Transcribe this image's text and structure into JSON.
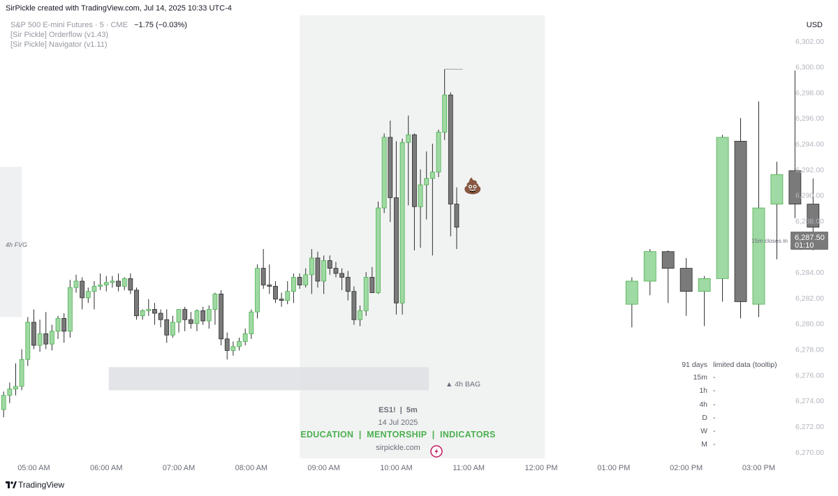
{
  "header": {
    "created_by": "SirPickle created with TradingView.com, Jul 14, 2025 10:33 UTC-4",
    "currency": "USD"
  },
  "legend": {
    "symbol": "S&P 500 E-mini Futures · 5 · CME",
    "change": "−1.75 (−0.03%)",
    "indicator_1": "[Sir Pickle] Orderflow (v1.43)",
    "indicator_2": "[Sir Pickle] Navigator (v1.11)"
  },
  "annotations": {
    "fvg_label": "4h FVG",
    "bag_label": "▲ 4h BAG",
    "emoji": "💩",
    "watermark_symbol": "ES1!  |  5m",
    "watermark_date": "14 Jul 2025",
    "watermark_banner": "EDUCATION  |  MENTORSHIP  |  INDICATORS",
    "watermark_site": "sirpickle.com",
    "closes_in_label": "15m closes in"
  },
  "price_tag": {
    "price": "6,287.50",
    "timer": "01:10"
  },
  "tooltip_table": {
    "header_days": "91 days",
    "header_note": "limited data (tooltip)",
    "rows": [
      {
        "tf": "15m",
        "val": "-"
      },
      {
        "tf": "1h",
        "val": "-"
      },
      {
        "tf": "4h",
        "val": "-"
      },
      {
        "tf": "D",
        "val": "-"
      },
      {
        "tf": "W",
        "val": "-"
      },
      {
        "tf": "M",
        "val": "-"
      }
    ]
  },
  "footer": {
    "brand": "TradingView"
  },
  "colors": {
    "up": "#9fd9a3",
    "up_border": "#4caf50",
    "down": "#7a7a7a",
    "down_border": "#2b2b2b",
    "accent_green": "#4caf50",
    "price_tag_bg": "#7a7a7a"
  },
  "chart_data": {
    "type": "candlestick",
    "y_axis": {
      "ticks": [
        6270,
        6272,
        6274,
        6276,
        6278,
        6280,
        6282,
        6284,
        6286,
        6288,
        6290,
        6292,
        6294,
        6296,
        6298,
        6300,
        6302
      ],
      "tick_labels": [
        "6,270.00",
        "6,272.00",
        "6,274.00",
        "6,276.00",
        "6,278.00",
        "6,280.00",
        "6,282.00",
        "6,284.00",
        "6,286.00",
        "6,288.00",
        "6,290.00",
        "6,292.00",
        "6,294.00",
        "6,296.00",
        "6,298.00",
        "6,300.00",
        "6,302.00"
      ],
      "range": [
        6269.5,
        6304
      ]
    },
    "x_axis": {
      "tick_labels": [
        "05:00 AM",
        "06:00 AM",
        "07:00 AM",
        "08:00 AM",
        "09:00 AM",
        "10:00 AM",
        "11:00 AM",
        "12:00 PM",
        "01:00 PM",
        "02:00 PM",
        "03:00 PM"
      ],
      "tick_minutes": [
        300,
        360,
        420,
        480,
        540,
        600,
        660,
        720,
        780,
        840,
        900
      ],
      "range_minutes": [
        272,
        924
      ]
    },
    "last_price": 6287.5,
    "zones": [
      {
        "label": "4h FVG",
        "x_start_min": 272,
        "x_end_min": 290,
        "y_low": 6280.5,
        "y_high": 6292.2
      },
      {
        "label": "4h BAG",
        "x_start_min": 362,
        "x_end_min": 627,
        "y_low": 6274.8,
        "y_high": 6276.6
      }
    ],
    "session_highlight": {
      "x_start_min": 520,
      "x_end_min": 723
    },
    "candles_5m": [
      {
        "t": 275,
        "o": 6273.3,
        "h": 6274.7,
        "l": 6272.7,
        "c": 6274.4
      },
      {
        "t": 280,
        "o": 6274.4,
        "h": 6275.4,
        "l": 6273.8,
        "c": 6274.9
      },
      {
        "t": 285,
        "o": 6274.9,
        "h": 6276.9,
        "l": 6274.4,
        "c": 6275.1
      },
      {
        "t": 290,
        "o": 6275.1,
        "h": 6278.0,
        "l": 6274.8,
        "c": 6277.2
      },
      {
        "t": 295,
        "o": 6277.2,
        "h": 6280.5,
        "l": 6276.7,
        "c": 6280.1
      },
      {
        "t": 300,
        "o": 6280.1,
        "h": 6281.1,
        "l": 6278.0,
        "c": 6278.3
      },
      {
        "t": 305,
        "o": 6278.3,
        "h": 6280.3,
        "l": 6277.8,
        "c": 6279.2
      },
      {
        "t": 310,
        "o": 6279.2,
        "h": 6280.9,
        "l": 6278.0,
        "c": 6278.4
      },
      {
        "t": 315,
        "o": 6278.4,
        "h": 6279.9,
        "l": 6277.9,
        "c": 6279.4
      },
      {
        "t": 320,
        "o": 6279.4,
        "h": 6280.6,
        "l": 6278.8,
        "c": 6280.4
      },
      {
        "t": 325,
        "o": 6280.4,
        "h": 6280.8,
        "l": 6278.5,
        "c": 6279.4
      },
      {
        "t": 330,
        "o": 6279.4,
        "h": 6283.4,
        "l": 6278.9,
        "c": 6282.8
      },
      {
        "t": 335,
        "o": 6282.8,
        "h": 6283.8,
        "l": 6282.4,
        "c": 6283.3
      },
      {
        "t": 340,
        "o": 6283.3,
        "h": 6283.6,
        "l": 6281.1,
        "c": 6282.0
      },
      {
        "t": 345,
        "o": 6282.0,
        "h": 6282.8,
        "l": 6281.6,
        "c": 6282.5
      },
      {
        "t": 350,
        "o": 6282.5,
        "h": 6283.3,
        "l": 6281.1,
        "c": 6282.9
      },
      {
        "t": 355,
        "o": 6282.9,
        "h": 6283.9,
        "l": 6282.6,
        "c": 6283.0
      },
      {
        "t": 360,
        "o": 6283.0,
        "h": 6283.7,
        "l": 6282.5,
        "c": 6283.2
      },
      {
        "t": 365,
        "o": 6283.2,
        "h": 6283.7,
        "l": 6282.8,
        "c": 6283.3
      },
      {
        "t": 370,
        "o": 6283.3,
        "h": 6283.9,
        "l": 6282.5,
        "c": 6282.9
      },
      {
        "t": 375,
        "o": 6282.9,
        "h": 6283.6,
        "l": 6282.6,
        "c": 6283.5
      },
      {
        "t": 380,
        "o": 6283.5,
        "h": 6283.9,
        "l": 6282.3,
        "c": 6282.6
      },
      {
        "t": 385,
        "o": 6282.6,
        "h": 6282.8,
        "l": 6280.3,
        "c": 6280.6
      },
      {
        "t": 390,
        "o": 6280.6,
        "h": 6281.1,
        "l": 6280.3,
        "c": 6281.0
      },
      {
        "t": 395,
        "o": 6281.0,
        "h": 6281.9,
        "l": 6280.6,
        "c": 6281.1
      },
      {
        "t": 400,
        "o": 6281.1,
        "h": 6281.6,
        "l": 6279.9,
        "c": 6280.8
      },
      {
        "t": 405,
        "o": 6280.8,
        "h": 6281.1,
        "l": 6279.7,
        "c": 6280.3
      },
      {
        "t": 410,
        "o": 6280.3,
        "h": 6281.1,
        "l": 6278.5,
        "c": 6279.1
      },
      {
        "t": 415,
        "o": 6279.1,
        "h": 6280.6,
        "l": 6278.9,
        "c": 6280.1
      },
      {
        "t": 420,
        "o": 6280.1,
        "h": 6281.1,
        "l": 6279.3,
        "c": 6281.1
      },
      {
        "t": 425,
        "o": 6281.1,
        "h": 6281.3,
        "l": 6279.4,
        "c": 6280.3
      },
      {
        "t": 430,
        "o": 6280.3,
        "h": 6280.9,
        "l": 6279.6,
        "c": 6280.0
      },
      {
        "t": 435,
        "o": 6280.0,
        "h": 6281.1,
        "l": 6279.4,
        "c": 6281.0
      },
      {
        "t": 440,
        "o": 6281.0,
        "h": 6281.3,
        "l": 6279.9,
        "c": 6280.2
      },
      {
        "t": 445,
        "o": 6280.2,
        "h": 6281.4,
        "l": 6279.6,
        "c": 6281.1
      },
      {
        "t": 450,
        "o": 6281.1,
        "h": 6282.4,
        "l": 6279.9,
        "c": 6282.3
      },
      {
        "t": 455,
        "o": 6282.3,
        "h": 6282.6,
        "l": 6278.3,
        "c": 6278.8
      },
      {
        "t": 460,
        "o": 6278.8,
        "h": 6279.3,
        "l": 6277.2,
        "c": 6277.9
      },
      {
        "t": 465,
        "o": 6277.9,
        "h": 6278.6,
        "l": 6277.5,
        "c": 6278.2
      },
      {
        "t": 470,
        "o": 6278.2,
        "h": 6278.9,
        "l": 6277.9,
        "c": 6278.6
      },
      {
        "t": 475,
        "o": 6278.6,
        "h": 6279.6,
        "l": 6278.3,
        "c": 6279.2
      },
      {
        "t": 480,
        "o": 6279.2,
        "h": 6281.1,
        "l": 6278.8,
        "c": 6280.9
      },
      {
        "t": 485,
        "o": 6280.9,
        "h": 6284.6,
        "l": 6280.4,
        "c": 6284.3
      },
      {
        "t": 490,
        "o": 6284.3,
        "h": 6285.8,
        "l": 6282.7,
        "c": 6283.0
      },
      {
        "t": 495,
        "o": 6283.0,
        "h": 6284.6,
        "l": 6282.3,
        "c": 6282.9
      },
      {
        "t": 500,
        "o": 6282.9,
        "h": 6283.3,
        "l": 6281.6,
        "c": 6281.9
      },
      {
        "t": 505,
        "o": 6281.9,
        "h": 6282.4,
        "l": 6281.3,
        "c": 6281.8
      },
      {
        "t": 510,
        "o": 6281.8,
        "h": 6283.3,
        "l": 6281.5,
        "c": 6282.5
      },
      {
        "t": 515,
        "o": 6282.5,
        "h": 6283.9,
        "l": 6281.6,
        "c": 6283.6
      },
      {
        "t": 520,
        "o": 6283.6,
        "h": 6283.9,
        "l": 6282.7,
        "c": 6283.0
      },
      {
        "t": 525,
        "o": 6283.0,
        "h": 6284.3,
        "l": 6282.8,
        "c": 6283.8
      },
      {
        "t": 530,
        "o": 6283.8,
        "h": 6285.8,
        "l": 6282.3,
        "c": 6285.1
      },
      {
        "t": 535,
        "o": 6285.1,
        "h": 6285.6,
        "l": 6282.8,
        "c": 6283.3
      },
      {
        "t": 540,
        "o": 6283.3,
        "h": 6285.3,
        "l": 6282.3,
        "c": 6284.9
      },
      {
        "t": 545,
        "o": 6284.9,
        "h": 6285.3,
        "l": 6283.8,
        "c": 6284.3
      },
      {
        "t": 550,
        "o": 6284.3,
        "h": 6284.8,
        "l": 6283.6,
        "c": 6283.9
      },
      {
        "t": 555,
        "o": 6283.9,
        "h": 6284.3,
        "l": 6282.6,
        "c": 6283.6
      },
      {
        "t": 560,
        "o": 6283.6,
        "h": 6284.1,
        "l": 6281.8,
        "c": 6282.5
      },
      {
        "t": 565,
        "o": 6282.5,
        "h": 6282.9,
        "l": 6279.9,
        "c": 6280.3
      },
      {
        "t": 570,
        "o": 6280.3,
        "h": 6281.4,
        "l": 6279.8,
        "c": 6281.0
      },
      {
        "t": 575,
        "o": 6281.0,
        "h": 6284.0,
        "l": 6280.6,
        "c": 6283.6
      },
      {
        "t": 580,
        "o": 6283.6,
        "h": 6284.4,
        "l": 6283.0,
        "c": 6282.4
      },
      {
        "t": 585,
        "o": 6282.4,
        "h": 6289.5,
        "l": 6282.3,
        "c": 6289.0
      },
      {
        "t": 590,
        "o": 6289.0,
        "h": 6294.8,
        "l": 6288.6,
        "c": 6294.5
      },
      {
        "t": 595,
        "o": 6294.5,
        "h": 6295.8,
        "l": 6287.9,
        "c": 6289.8
      },
      {
        "t": 600,
        "o": 6289.8,
        "h": 6294.2,
        "l": 6280.7,
        "c": 6281.6
      },
      {
        "t": 605,
        "o": 6281.6,
        "h": 6294.4,
        "l": 6280.7,
        "c": 6294.1
      },
      {
        "t": 610,
        "o": 6294.1,
        "h": 6296.2,
        "l": 6289.2,
        "c": 6294.7
      },
      {
        "t": 615,
        "o": 6294.7,
        "h": 6294.8,
        "l": 6285.7,
        "c": 6289.1
      },
      {
        "t": 620,
        "o": 6289.1,
        "h": 6292.0,
        "l": 6285.9,
        "c": 6290.8
      },
      {
        "t": 625,
        "o": 6290.8,
        "h": 6293.4,
        "l": 6288.1,
        "c": 6291.3
      },
      {
        "t": 630,
        "o": 6291.3,
        "h": 6294.0,
        "l": 6285.3,
        "c": 6291.8
      },
      {
        "t": 635,
        "o": 6291.8,
        "h": 6295.1,
        "l": 6291.4,
        "c": 6294.9
      },
      {
        "t": 640,
        "o": 6294.9,
        "h": 6299.8,
        "l": 6294.3,
        "c": 6297.8
      },
      {
        "t": 645,
        "o": 6297.8,
        "h": 6298.0,
        "l": 6286.8,
        "c": 6289.3
      },
      {
        "t": 650,
        "o": 6289.3,
        "h": 6290.6,
        "l": 6285.8,
        "c": 6287.5
      }
    ],
    "candles_15m": [
      {
        "t": 795,
        "o": 6281.5,
        "h": 6283.6,
        "l": 6279.7,
        "c": 6283.3
      },
      {
        "t": 810,
        "o": 6283.3,
        "h": 6285.8,
        "l": 6282.2,
        "c": 6285.6
      },
      {
        "t": 825,
        "o": 6285.6,
        "h": 6285.7,
        "l": 6281.6,
        "c": 6284.3
      },
      {
        "t": 840,
        "o": 6284.3,
        "h": 6285.1,
        "l": 6280.6,
        "c": 6282.5
      },
      {
        "t": 855,
        "o": 6282.5,
        "h": 6283.7,
        "l": 6279.8,
        "c": 6283.5
      },
      {
        "t": 870,
        "o": 6283.5,
        "h": 6294.7,
        "l": 6281.7,
        "c": 6294.5
      },
      {
        "t": 885,
        "o": 6294.2,
        "h": 6296.0,
        "l": 6280.4,
        "c": 6281.7
      },
      {
        "t": 900,
        "o": 6281.5,
        "h": 6297.3,
        "l": 6280.5,
        "c": 6289.0
      },
      {
        "t": 915,
        "o": 6289.3,
        "h": 6292.6,
        "l": 6285.0,
        "c": 6291.6
      },
      {
        "t": 930,
        "o": 6291.9,
        "h": 6299.7,
        "l": 6288.2,
        "c": 6289.3
      },
      {
        "t": 945,
        "o": 6289.3,
        "h": 6291.3,
        "l": 6285.7,
        "c": 6287.5
      }
    ]
  }
}
